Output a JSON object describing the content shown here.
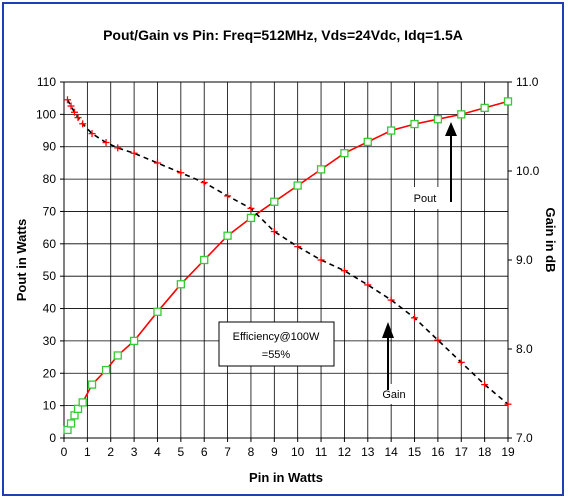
{
  "chart_data": {
    "type": "line",
    "title": "Pout/Gain vs Pin: Freq=512MHz, Vds=24Vdc, Idq=1.5A",
    "xlabel": "Pin in Watts",
    "ylabel": "Pout in Watts",
    "y2label": "Gain in dB",
    "xlim": [
      0,
      19
    ],
    "ylim": [
      0,
      110
    ],
    "y2lim": [
      7.0,
      11.0
    ],
    "x_ticks": [
      "0",
      "1",
      "2",
      "3",
      "4",
      "5",
      "6",
      "7",
      "8",
      "9",
      "10",
      "11",
      "12",
      "13",
      "14",
      "15",
      "16",
      "17",
      "18",
      "19"
    ],
    "y_ticks": [
      "0",
      "10",
      "20",
      "30",
      "40",
      "50",
      "60",
      "70",
      "80",
      "90",
      "100",
      "110"
    ],
    "y2_ticks": [
      "7.0",
      "8.0",
      "9.0",
      "10.0",
      "11.0"
    ],
    "grid": true,
    "series": [
      {
        "name": "Pout",
        "axis": "left",
        "color": "#ff0000",
        "marker": "square",
        "marker_color": "#33cc33",
        "x": [
          0.15,
          0.3,
          0.45,
          0.6,
          0.8,
          1.2,
          1.8,
          2.3,
          3.0,
          4.0,
          5.0,
          6.0,
          7.0,
          8.0,
          9.0,
          10.0,
          11.0,
          12.0,
          13.0,
          14.0,
          15.0,
          16.0,
          17.0,
          18.0,
          19.0
        ],
        "y": [
          2.5,
          4.5,
          7,
          9,
          11,
          16.5,
          21,
          25.5,
          30,
          39,
          47.5,
          55,
          62.5,
          68,
          73,
          78,
          83,
          88,
          91.5,
          95,
          97,
          98.5,
          100,
          102,
          104
        ]
      },
      {
        "name": "Gain",
        "axis": "right",
        "color": "#000000",
        "linestyle": "dashed",
        "marker": "plus",
        "marker_color": "#ff0000",
        "x": [
          0.15,
          0.3,
          0.45,
          0.6,
          0.8,
          1.2,
          1.8,
          2.3,
          3.0,
          4.0,
          5.0,
          6.0,
          7.0,
          8.0,
          9.0,
          10.0,
          11.0,
          12.0,
          13.0,
          14.0,
          15.0,
          16.0,
          17.0,
          18.0,
          19.0
        ],
        "y": [
          10.8,
          10.73,
          10.66,
          10.6,
          10.53,
          10.42,
          10.32,
          10.26,
          10.2,
          10.09,
          9.98,
          9.87,
          9.72,
          9.58,
          9.32,
          9.15,
          9.0,
          8.88,
          8.72,
          8.55,
          8.35,
          8.1,
          7.85,
          7.6,
          7.38
        ]
      }
    ],
    "annotations": {
      "efficiency_line1": "Efficiency@100W",
      "efficiency_line2": "=55%",
      "pout_label": "Pout",
      "gain_label": "Gain"
    }
  }
}
